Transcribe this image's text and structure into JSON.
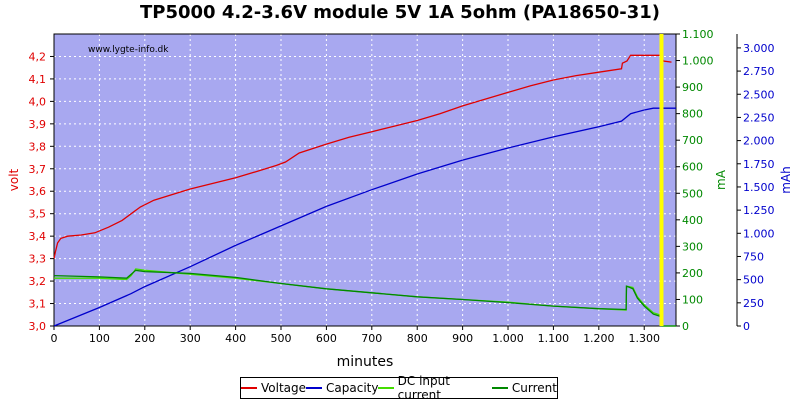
{
  "chart_data": {
    "type": "line",
    "title": "TP5000 4.2-3.6V module 5V 1A 5ohm (PA18650-31)",
    "watermark": "www.lygte-info.dk",
    "xlabel": "minutes",
    "xlim": [
      0,
      1370
    ],
    "x_ticks": [
      {
        "v": 0,
        "label": "0"
      },
      {
        "v": 100,
        "label": "100"
      },
      {
        "v": 200,
        "label": "200"
      },
      {
        "v": 300,
        "label": "300"
      },
      {
        "v": 400,
        "label": "400"
      },
      {
        "v": 500,
        "label": "500"
      },
      {
        "v": 600,
        "label": "600"
      },
      {
        "v": 700,
        "label": "700"
      },
      {
        "v": 800,
        "label": "800"
      },
      {
        "v": 900,
        "label": "900"
      },
      {
        "v": 1000,
        "label": "1.000"
      },
      {
        "v": 1100,
        "label": "1.100"
      },
      {
        "v": 1200,
        "label": "1.200"
      },
      {
        "v": 1300,
        "label": "1.300"
      }
    ],
    "y_left": {
      "label": "volt",
      "color": "#e00000",
      "lim": [
        3.0,
        4.3
      ],
      "ticks": [
        {
          "v": 3.0,
          "label": "3,0"
        },
        {
          "v": 3.1,
          "label": "3,1"
        },
        {
          "v": 3.2,
          "label": "3,2"
        },
        {
          "v": 3.3,
          "label": "3,3"
        },
        {
          "v": 3.4,
          "label": "3,4"
        },
        {
          "v": 3.5,
          "label": "3,5"
        },
        {
          "v": 3.6,
          "label": "3,6"
        },
        {
          "v": 3.7,
          "label": "3,7"
        },
        {
          "v": 3.8,
          "label": "3,8"
        },
        {
          "v": 3.9,
          "label": "3,9"
        },
        {
          "v": 4.0,
          "label": "4,0"
        },
        {
          "v": 4.1,
          "label": "4,1"
        },
        {
          "v": 4.2,
          "label": "4,2"
        }
      ]
    },
    "y_mid": {
      "label": "mA",
      "color": "#008800",
      "lim": [
        0,
        1100
      ],
      "ticks": [
        {
          "v": 0,
          "label": "0"
        },
        {
          "v": 100,
          "label": "100"
        },
        {
          "v": 200,
          "label": "200"
        },
        {
          "v": 300,
          "label": "300"
        },
        {
          "v": 400,
          "label": "400"
        },
        {
          "v": 500,
          "label": "500"
        },
        {
          "v": 600,
          "label": "600"
        },
        {
          "v": 700,
          "label": "700"
        },
        {
          "v": 800,
          "label": "800"
        },
        {
          "v": 900,
          "label": "900"
        },
        {
          "v": 1000,
          "label": "1.000"
        },
        {
          "v": 1100,
          "label": "1.100"
        }
      ]
    },
    "y_right": {
      "label": "mAh",
      "color": "#0000cc",
      "lim": [
        0,
        3150
      ],
      "ticks": [
        {
          "v": 0,
          "label": "0"
        },
        {
          "v": 250,
          "label": "250"
        },
        {
          "v": 500,
          "label": "500"
        },
        {
          "v": 750,
          "label": "750"
        },
        {
          "v": 1000,
          "label": "1.000"
        },
        {
          "v": 1250,
          "label": "1.250"
        },
        {
          "v": 1500,
          "label": "1.500"
        },
        {
          "v": 1750,
          "label": "1.750"
        },
        {
          "v": 2000,
          "label": "2.000"
        },
        {
          "v": 2250,
          "label": "2.250"
        },
        {
          "v": 2500,
          "label": "2.500"
        },
        {
          "v": 2750,
          "label": "2.750"
        },
        {
          "v": 3000,
          "label": "3.000"
        }
      ]
    },
    "marker_x": 1338,
    "marker_color": "#ffff00",
    "grid": true,
    "background": "#a8a8f0",
    "series": [
      {
        "name": "Voltage",
        "axis": "left",
        "color": "#e00000",
        "points": [
          [
            0,
            3.3
          ],
          [
            3,
            3.33
          ],
          [
            8,
            3.37
          ],
          [
            15,
            3.39
          ],
          [
            30,
            3.4
          ],
          [
            60,
            3.405
          ],
          [
            90,
            3.415
          ],
          [
            120,
            3.44
          ],
          [
            150,
            3.47
          ],
          [
            170,
            3.5
          ],
          [
            190,
            3.53
          ],
          [
            220,
            3.56
          ],
          [
            260,
            3.585
          ],
          [
            300,
            3.61
          ],
          [
            350,
            3.635
          ],
          [
            400,
            3.66
          ],
          [
            450,
            3.69
          ],
          [
            490,
            3.715
          ],
          [
            510,
            3.73
          ],
          [
            540,
            3.77
          ],
          [
            600,
            3.81
          ],
          [
            650,
            3.84
          ],
          [
            700,
            3.865
          ],
          [
            750,
            3.89
          ],
          [
            800,
            3.915
          ],
          [
            850,
            3.945
          ],
          [
            900,
            3.98
          ],
          [
            950,
            4.01
          ],
          [
            1000,
            4.04
          ],
          [
            1050,
            4.07
          ],
          [
            1100,
            4.095
          ],
          [
            1150,
            4.115
          ],
          [
            1200,
            4.13
          ],
          [
            1250,
            4.145
          ],
          [
            1252,
            4.17
          ],
          [
            1262,
            4.18
          ],
          [
            1270,
            4.205
          ],
          [
            1338,
            4.205
          ],
          [
            1342,
            4.18
          ],
          [
            1360,
            4.175
          ]
        ]
      },
      {
        "name": "Capacity",
        "axis": "right",
        "color": "#0000cc",
        "points": [
          [
            0,
            0
          ],
          [
            100,
            200
          ],
          [
            170,
            350
          ],
          [
            200,
            425
          ],
          [
            300,
            640
          ],
          [
            400,
            870
          ],
          [
            500,
            1080
          ],
          [
            600,
            1290
          ],
          [
            700,
            1470
          ],
          [
            800,
            1640
          ],
          [
            900,
            1790
          ],
          [
            1000,
            1920
          ],
          [
            1100,
            2040
          ],
          [
            1200,
            2150
          ],
          [
            1250,
            2210
          ],
          [
            1270,
            2290
          ],
          [
            1300,
            2330
          ],
          [
            1320,
            2350
          ],
          [
            1338,
            2350
          ],
          [
            1370,
            2350
          ]
        ]
      },
      {
        "name": "DC input current",
        "axis": "mid",
        "color": "#44dd00",
        "points": [
          [
            0,
            180
          ],
          [
            100,
            180
          ],
          [
            160,
            175
          ],
          [
            170,
            190
          ],
          [
            180,
            215
          ],
          [
            200,
            210
          ],
          [
            300,
            195
          ],
          [
            400,
            180
          ],
          [
            500,
            160
          ],
          [
            600,
            140
          ],
          [
            700,
            125
          ],
          [
            800,
            110
          ],
          [
            900,
            100
          ],
          [
            1000,
            90
          ],
          [
            1100,
            75
          ],
          [
            1200,
            65
          ],
          [
            1260,
            60
          ],
          [
            1261,
            150
          ],
          [
            1275,
            145
          ],
          [
            1285,
            110
          ],
          [
            1300,
            80
          ],
          [
            1320,
            50
          ],
          [
            1338,
            40
          ],
          [
            1339,
            0
          ],
          [
            1370,
            0
          ]
        ]
      },
      {
        "name": "Current",
        "axis": "mid",
        "color": "#008800",
        "points": [
          [
            0,
            190
          ],
          [
            100,
            185
          ],
          [
            160,
            180
          ],
          [
            170,
            195
          ],
          [
            180,
            210
          ],
          [
            200,
            205
          ],
          [
            300,
            198
          ],
          [
            400,
            183
          ],
          [
            500,
            160
          ],
          [
            600,
            140
          ],
          [
            700,
            125
          ],
          [
            800,
            110
          ],
          [
            900,
            100
          ],
          [
            1000,
            88
          ],
          [
            1100,
            75
          ],
          [
            1200,
            65
          ],
          [
            1260,
            62
          ],
          [
            1261,
            150
          ],
          [
            1275,
            140
          ],
          [
            1285,
            105
          ],
          [
            1300,
            75
          ],
          [
            1320,
            45
          ],
          [
            1338,
            35
          ],
          [
            1339,
            0
          ],
          [
            1370,
            0
          ]
        ]
      }
    ]
  }
}
